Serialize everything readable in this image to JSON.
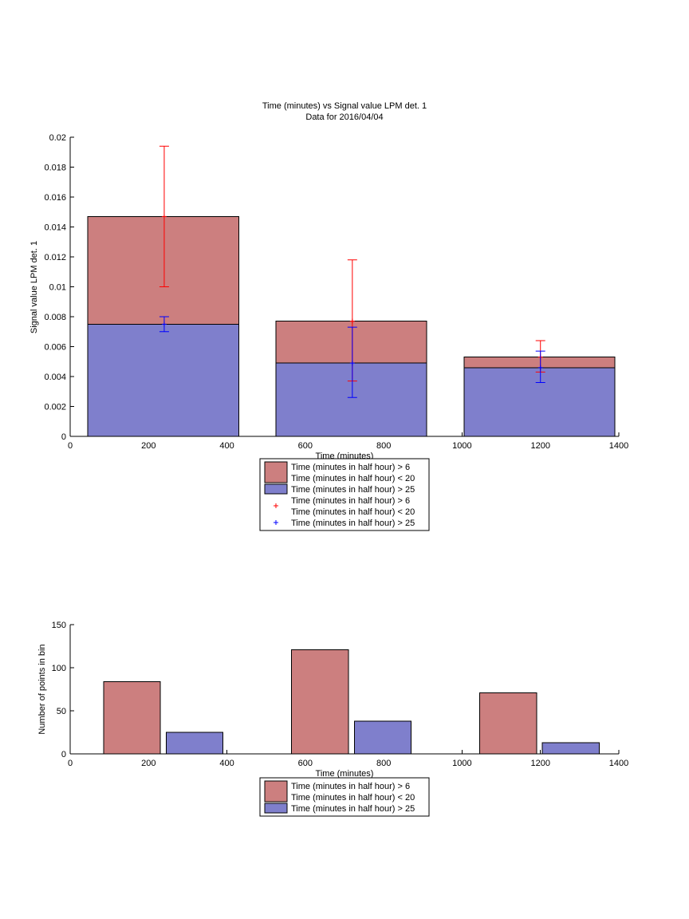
{
  "colors": {
    "red_fill": "#cc7f7f",
    "blue_fill": "#7f7fcc",
    "red_err": "#ff0000",
    "blue_err": "#0000ff"
  },
  "chart_data": [
    {
      "type": "bar",
      "title": "Time (minutes) vs Signal value LPM det. 1",
      "subtitle": "Data for 2016/04/04",
      "xlabel": "Time (minutes)",
      "ylabel": "Signal value LPM det. 1",
      "xlim": [
        0,
        1400
      ],
      "ylim": [
        0,
        0.02
      ],
      "xticks": [
        0,
        200,
        400,
        600,
        800,
        1000,
        1200,
        1400
      ],
      "yticks": [
        0,
        0.002,
        0.004,
        0.006,
        0.008,
        0.01,
        0.012,
        0.014,
        0.016,
        0.018,
        0.02
      ],
      "xtick_labels": [
        "0",
        "200",
        "400",
        "600",
        "800",
        "1000",
        "1200",
        "1400"
      ],
      "ytick_labels": [
        "0",
        "0.002",
        "0.004",
        "0.006",
        "0.008",
        "0.01",
        "0.012",
        "0.014",
        "0.016",
        "0.018",
        "0.02"
      ],
      "bar_ranges": [
        [
          45,
          430
        ],
        [
          525,
          910
        ],
        [
          1005,
          1390
        ]
      ],
      "series": [
        {
          "name": "Time (minutes in half hour) > 6 Time (minutes in half hour) < 20",
          "legend_lines": [
            "Time (minutes in half hour) > 6",
            "Time (minutes in half hour) < 20"
          ],
          "color": "red",
          "values": [
            0.0147,
            0.0077,
            0.0053
          ]
        },
        {
          "name": "Time (minutes in half hour) > 25",
          "legend_lines": [
            "Time (minutes in half hour) > 25"
          ],
          "color": "blue",
          "values": [
            0.0075,
            0.0049,
            0.0046
          ]
        }
      ],
      "errorbars": [
        {
          "name": "Time (minutes in half hour) > 6 Time (minutes in half hour) < 20",
          "legend_lines": [
            "Time (minutes in half hour) > 6",
            "Time (minutes in half hour) < 20"
          ],
          "color": "red",
          "x": [
            240,
            720,
            1200
          ],
          "y": [
            0.0147,
            0.0077,
            0.0053
          ],
          "lower": [
            0.01,
            0.0037,
            0.0043
          ],
          "upper": [
            0.0194,
            0.0118,
            0.0064
          ]
        },
        {
          "name": "Time (minutes in half hour) > 25",
          "legend_lines": [
            "Time (minutes in half hour) > 25"
          ],
          "color": "blue",
          "x": [
            240,
            720,
            1200
          ],
          "y": [
            0.0075,
            0.0049,
            0.0046
          ],
          "lower": [
            0.007,
            0.0026,
            0.0036
          ],
          "upper": [
            0.008,
            0.0073,
            0.0057
          ]
        }
      ],
      "legend": "below"
    },
    {
      "type": "bar",
      "xlabel": "Time (minutes)",
      "ylabel": "Number of points in bin",
      "xlim": [
        0,
        1400
      ],
      "ylim": [
        0,
        150
      ],
      "xticks": [
        0,
        200,
        400,
        600,
        800,
        1000,
        1200,
        1400
      ],
      "yticks": [
        0,
        50,
        100,
        150
      ],
      "xtick_labels": [
        "0",
        "200",
        "400",
        "600",
        "800",
        "1000",
        "1200",
        "1400"
      ],
      "ytick_labels": [
        "0",
        "50",
        "100",
        "150"
      ],
      "series": [
        {
          "name": "Time (minutes in half hour) > 6 Time (minutes in half hour) < 20",
          "legend_lines": [
            "Time (minutes in half hour) > 6",
            "Time (minutes in half hour) < 20"
          ],
          "color": "red",
          "x_ranges": [
            [
              85,
              230
            ],
            [
              565,
              710
            ],
            [
              1045,
              1190
            ]
          ],
          "values": [
            84,
            121,
            71
          ]
        },
        {
          "name": "Time (minutes in half hour) > 25",
          "legend_lines": [
            "Time (minutes in half hour) > 25"
          ],
          "color": "blue",
          "x_ranges": [
            [
              245,
              390
            ],
            [
              725,
              870
            ],
            [
              1205,
              1350
            ]
          ],
          "values": [
            25,
            38,
            13
          ]
        }
      ],
      "legend": "below"
    }
  ]
}
